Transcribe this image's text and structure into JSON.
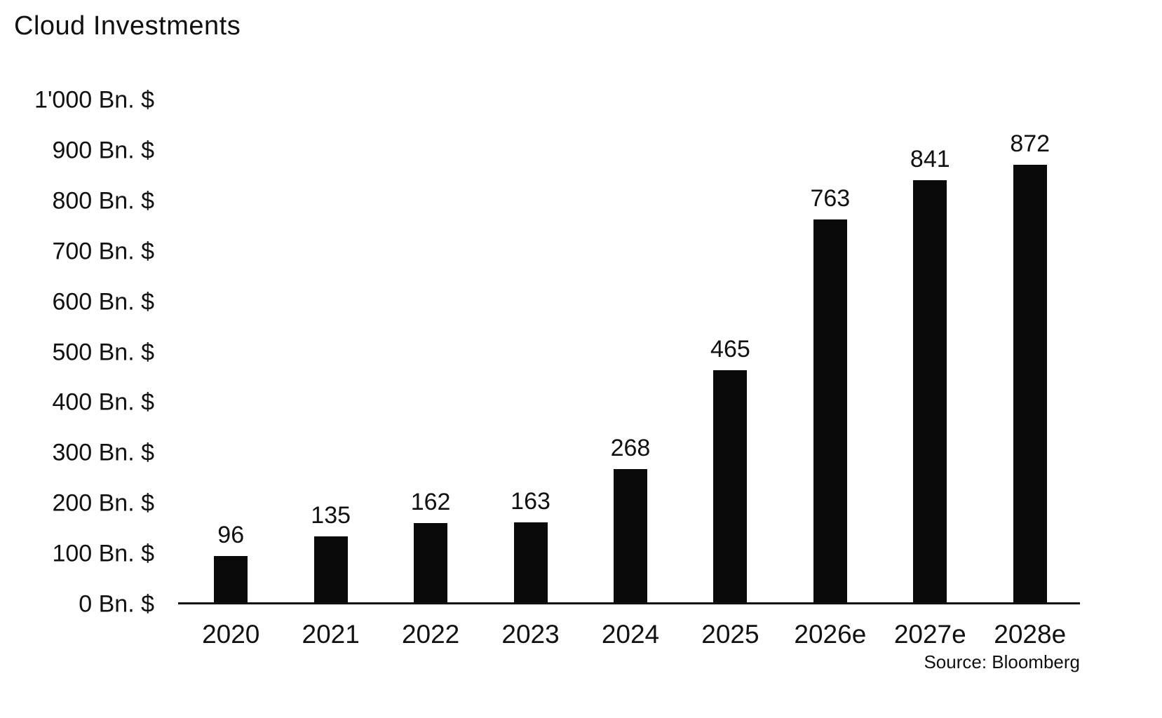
{
  "title": "Cloud Investments",
  "source": "Source: Bloomberg",
  "chart_data": {
    "type": "bar",
    "title": "Cloud Investments",
    "categories": [
      "2020",
      "2021",
      "2022",
      "2023",
      "2024",
      "2025",
      "2026e",
      "2027e",
      "2028e"
    ],
    "values": [
      96,
      135,
      162,
      163,
      268,
      465,
      763,
      841,
      872
    ],
    "xlabel": "",
    "ylabel": "Bn. $",
    "ylim": [
      0,
      1000
    ],
    "ytick_step": 100,
    "ytick_values": [
      0,
      100,
      200,
      300,
      400,
      500,
      600,
      700,
      800,
      900,
      1000
    ],
    "ytick_labels": [
      "0 Bn. $",
      "100 Bn. $",
      "200 Bn. $",
      "300 Bn. $",
      "400 Bn. $",
      "500 Bn. $",
      "600 Bn. $",
      "700 Bn. $",
      "800 Bn. $",
      "900 Bn. $",
      "1'000 Bn. $"
    ],
    "bar_color": "#0a0a0a",
    "grid": false,
    "legend_position": "none",
    "annotation": "Source: Bloomberg"
  }
}
